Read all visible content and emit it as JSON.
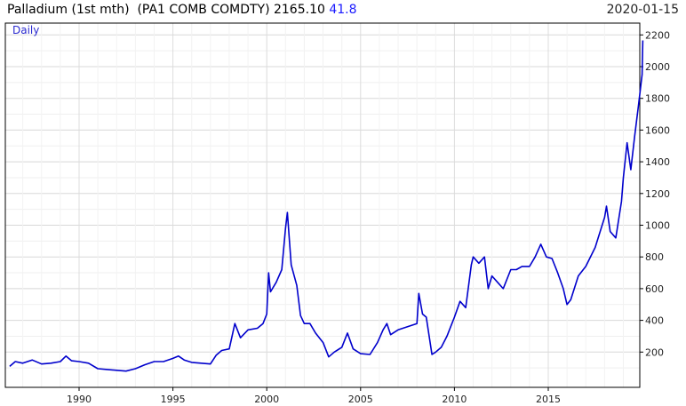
{
  "header": {
    "title": "Palladium (1st mth)  (PA1 COMB COMDTY) 2165.10",
    "change": "41.8",
    "date": "2020-01-15",
    "frequency": "Daily"
  },
  "chart_data": {
    "type": "line",
    "line_color": "#0000cc",
    "xlim": [
      1986.3,
      2020.1
    ],
    "ylim": [
      0,
      2250
    ],
    "grid": true,
    "y_axis_side": "right",
    "x_ticks": [
      1990,
      1995,
      2000,
      2005,
      2010,
      2015
    ],
    "y_ticks": [
      200,
      400,
      600,
      800,
      1000,
      1200,
      1400,
      1600,
      1800,
      2000,
      2200
    ],
    "series": [
      {
        "x": [
          1986.3,
          1986.6,
          1987,
          1987.5,
          1988,
          1988.5,
          1989,
          1989.3,
          1989.6,
          1990,
          1990.5,
          1991,
          1991.5,
          1992,
          1992.5,
          1993,
          1993.5,
          1994,
          1994.5,
          1995,
          1995.3,
          1995.6,
          1996,
          1996.5,
          1997,
          1997.3,
          1997.6,
          1998,
          1998.3,
          1998.6,
          1999,
          1999.5,
          1999.8,
          2000,
          2000.1,
          2000.2,
          2000.5,
          2000.8,
          2001,
          2001.1,
          2001.3,
          2001.6,
          2001.8,
          2002,
          2002.3,
          2002.6,
          2003,
          2003.3,
          2003.6,
          2004,
          2004.3,
          2004.6,
          2005,
          2005.5,
          2005.9,
          2006.2,
          2006.4,
          2006.6,
          2007,
          2007.5,
          2008,
          2008.1,
          2008.3,
          2008.5,
          2008.8,
          2009,
          2009.3,
          2009.6,
          2010,
          2010.3,
          2010.6,
          2010.9,
          2011,
          2011.3,
          2011.6,
          2011.8,
          2012,
          2012.3,
          2012.6,
          2013,
          2013.3,
          2013.6,
          2014,
          2014.3,
          2014.6,
          2014.9,
          2015.2,
          2015.5,
          2015.8,
          2016,
          2016.2,
          2016.6,
          2017,
          2017.5,
          2018,
          2018.1,
          2018.3,
          2018.6,
          2018.9,
          2019,
          2019.2,
          2019.4,
          2019.6,
          2019.8,
          2020,
          2020.04
        ],
        "y": [
          110,
          140,
          130,
          150,
          125,
          130,
          140,
          175,
          145,
          140,
          130,
          95,
          90,
          85,
          80,
          95,
          120,
          140,
          140,
          160,
          175,
          150,
          135,
          130,
          125,
          180,
          210,
          220,
          380,
          290,
          340,
          350,
          380,
          440,
          700,
          580,
          640,
          720,
          980,
          1080,
          750,
          620,
          430,
          380,
          380,
          320,
          260,
          170,
          200,
          230,
          320,
          220,
          190,
          185,
          260,
          340,
          380,
          310,
          340,
          360,
          380,
          570,
          440,
          420,
          185,
          200,
          230,
          300,
          420,
          520,
          480,
          750,
          800,
          760,
          800,
          600,
          680,
          640,
          600,
          720,
          720,
          740,
          740,
          800,
          880,
          800,
          790,
          700,
          600,
          500,
          530,
          680,
          740,
          860,
          1050,
          1120,
          960,
          920,
          1150,
          1300,
          1520,
          1350,
          1560,
          1750,
          1950,
          2165
        ]
      }
    ]
  }
}
